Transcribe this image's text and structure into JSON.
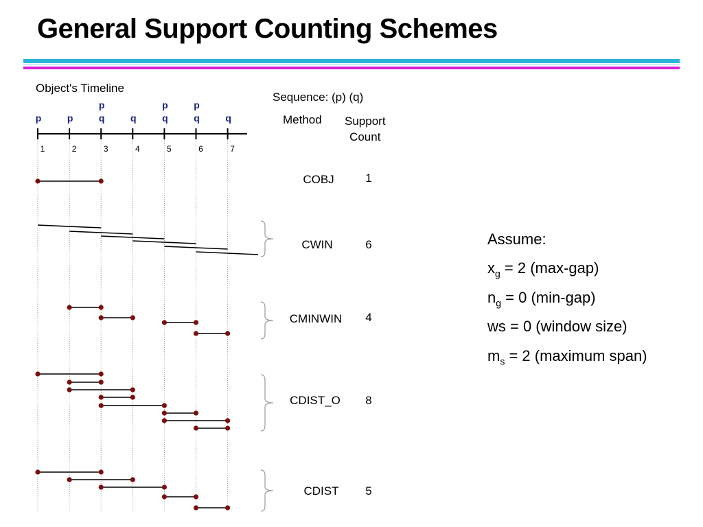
{
  "title": "General Support Counting Schemes",
  "colors": {
    "rule_cyan": "#29b6d9",
    "rule_magenta": "#d41fd4",
    "event_text": "#1a237e",
    "dot": "#7a0f0f"
  },
  "timeline": {
    "label": "Object's Timeline",
    "positions": [
      1,
      2,
      3,
      4,
      5,
      6,
      7
    ],
    "events_top": [
      "",
      "",
      "p",
      "",
      "p",
      "p",
      ""
    ],
    "events_bottom": [
      "p",
      "p",
      "q",
      "q",
      "q",
      "q",
      "q"
    ]
  },
  "sequence": {
    "label": "Sequence: (p) (q)",
    "method_header": "Method",
    "support_header_line1": "Support",
    "support_header_line2": "Count"
  },
  "methods": [
    {
      "name": "COBJ",
      "count": "1"
    },
    {
      "name": "CWIN",
      "count": "6"
    },
    {
      "name": "CMINWIN",
      "count": "4"
    },
    {
      "name": "CDIST_O",
      "count": "8"
    },
    {
      "name": "CDIST",
      "count": "5"
    }
  ],
  "occurrences": {
    "COBJ": [
      [
        1,
        3
      ]
    ],
    "CWIN": [
      [
        1,
        3
      ],
      [
        2,
        4
      ],
      [
        3,
        5
      ],
      [
        4,
        6
      ],
      [
        5,
        7
      ],
      [
        6,
        8
      ]
    ],
    "CMINWIN": [
      [
        2,
        3
      ],
      [
        3,
        4
      ],
      [
        5,
        6
      ],
      [
        6,
        7
      ]
    ],
    "CDIST_O": [
      [
        1,
        3
      ],
      [
        2,
        3
      ],
      [
        2,
        4
      ],
      [
        3,
        4
      ],
      [
        3,
        5
      ],
      [
        5,
        6
      ],
      [
        5,
        7
      ],
      [
        6,
        7
      ]
    ],
    "CDIST": [
      [
        1,
        3
      ],
      [
        2,
        4
      ],
      [
        3,
        5
      ],
      [
        5,
        6
      ],
      [
        6,
        7
      ]
    ]
  },
  "assumptions": {
    "heading": "Assume:",
    "xg": {
      "base": "x",
      "sub": "g",
      "rest": " = 2 (max-gap)"
    },
    "ng": {
      "base": "n",
      "sub": "g",
      "rest": " = 0 (min-gap)"
    },
    "ws": {
      "text": "ws = 0 (window size)"
    },
    "ms": {
      "base": "m",
      "sub": "s",
      "rest": " = 2 (maximum span)"
    }
  }
}
